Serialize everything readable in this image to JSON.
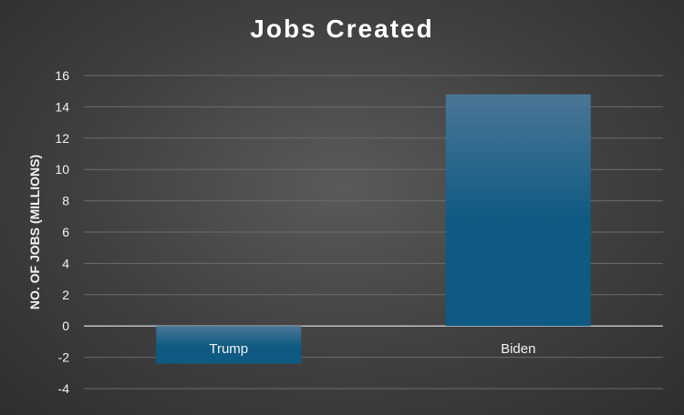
{
  "chart_data": {
    "type": "bar",
    "title": "Jobs Created",
    "ylabel": "NO. OF JOBS (MILLIONS)",
    "xlabel": "",
    "categories": [
      "Trump",
      "Biden"
    ],
    "values": [
      -2.4,
      14.8
    ],
    "ylim": [
      -4,
      16
    ],
    "yticks": [
      16,
      14,
      12,
      10,
      8,
      6,
      4,
      2,
      0,
      -2,
      -4
    ],
    "ytick_labels": [
      "16",
      "14",
      "12",
      "10",
      "8",
      "6",
      "4",
      "2",
      "0",
      "-2",
      "-4"
    ],
    "grid": true,
    "legend": "none",
    "colors": {
      "bar_top": "#4a7696",
      "bar_bottom": "#0e5a82",
      "gridline": "#6b6b6b",
      "zero_line": "#bfbfbf",
      "text": "#f2f2f2"
    }
  }
}
